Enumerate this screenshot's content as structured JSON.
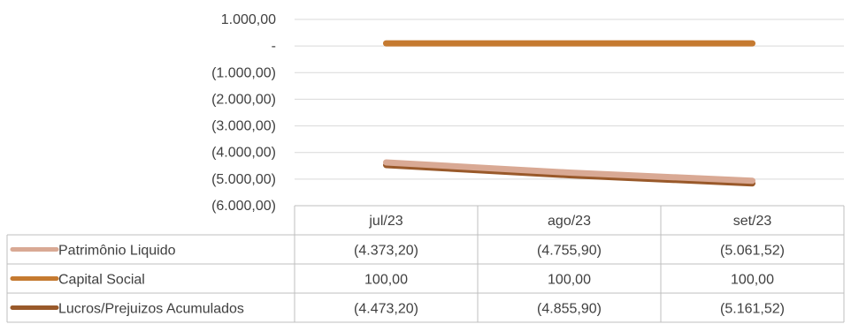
{
  "chart_data": {
    "type": "line",
    "categories": [
      "jul/23",
      "ago/23",
      "set/23"
    ],
    "ylim": [
      -6000,
      1000
    ],
    "yticks": [
      "1.000,00",
      "-",
      "(1.000,00)",
      "(2.000,00)",
      "(3.000,00)",
      "(4.000,00)",
      "(5.000,00)",
      "(6.000,00)"
    ],
    "grid": true,
    "legend": "data-table",
    "series": [
      {
        "name": "Patrimônio Liquido",
        "values": [
          -4373.2,
          -4755.9,
          -5061.52
        ],
        "labels": [
          "(4.373,20)",
          "(4.755,90)",
          "(5.061,52)"
        ],
        "color": "#D9A994"
      },
      {
        "name": "Capital Social",
        "values": [
          100,
          100,
          100
        ],
        "labels": [
          "100,00",
          "100,00",
          "100,00"
        ],
        "color": "#C57A30"
      },
      {
        "name": "Lucros/Prejuizos Acumulados",
        "values": [
          -4473.2,
          -4855.9,
          -5161.52
        ],
        "labels": [
          "(4.473,20)",
          "(4.855,90)",
          "(5.161,52)"
        ],
        "color": "#99592A"
      }
    ]
  }
}
